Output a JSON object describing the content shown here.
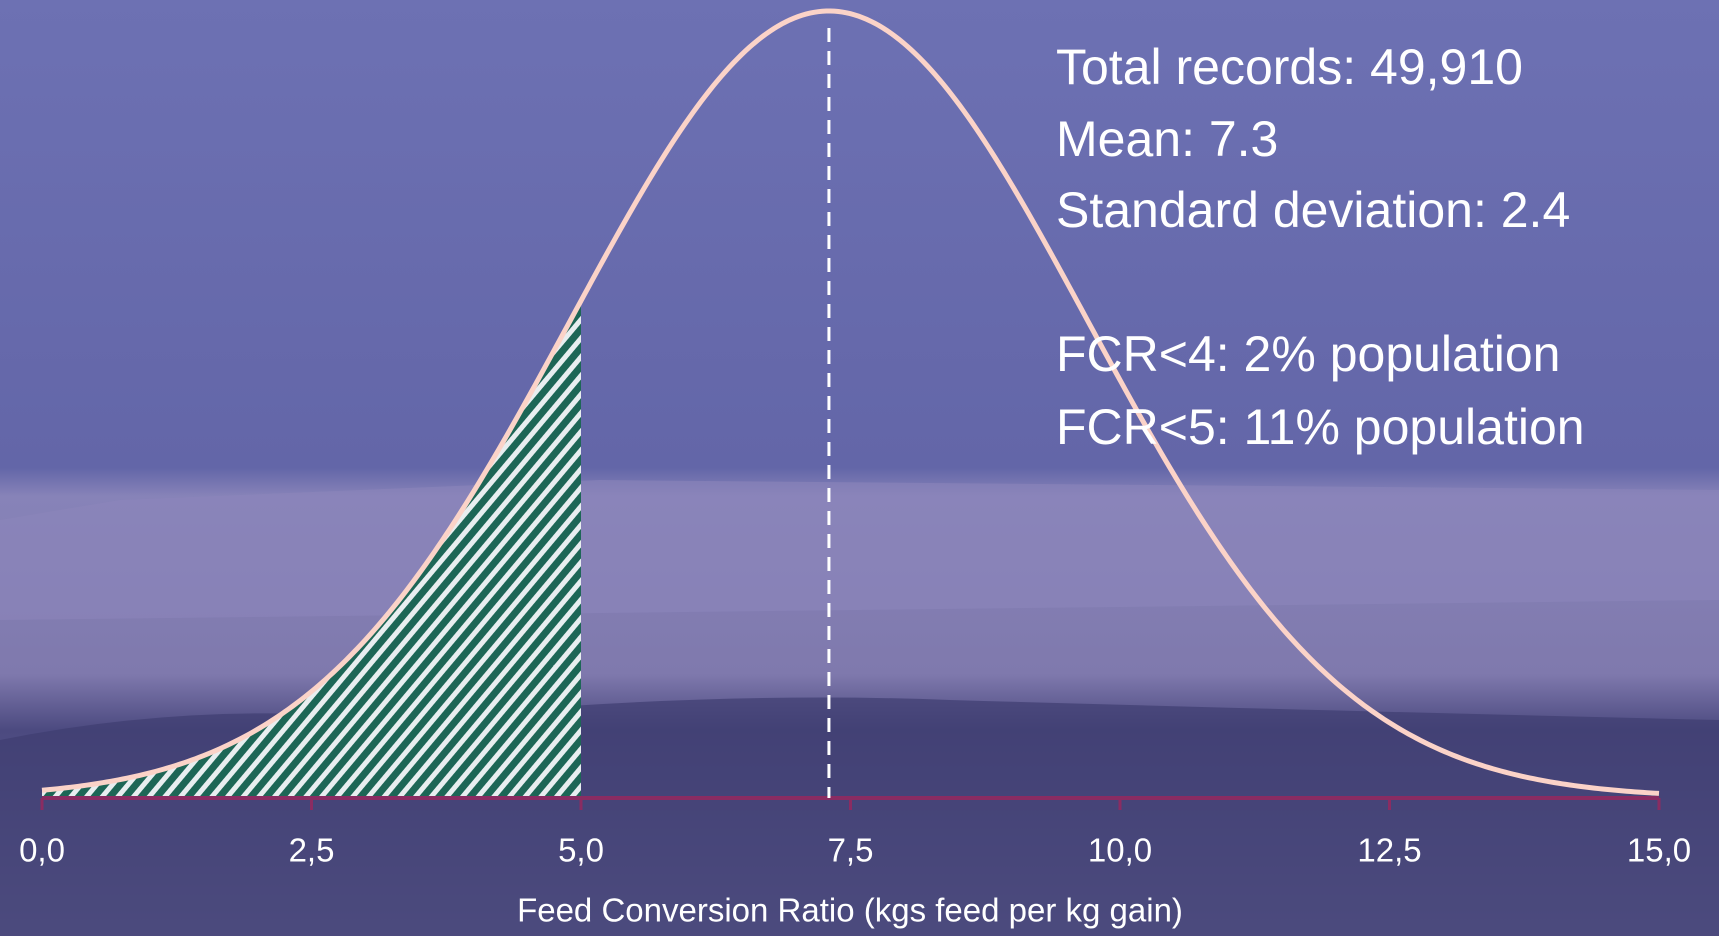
{
  "chart_data": {
    "type": "normal-curve",
    "annotations": [
      "Total records: 49,910",
      "Mean: 7.3",
      "Standard deviation: 2.4",
      "FCR<4: 2% population",
      "FCR<5: 11% population"
    ],
    "distribution": {
      "mean": 7.3,
      "sd": 2.4
    },
    "shade_below": 5,
    "xlabel": "Feed Conversion Ratio (kgs feed per kg gain)",
    "xlim": [
      0,
      15
    ],
    "xticks": [
      {
        "value": 0,
        "label": "0,0"
      },
      {
        "value": 2.5,
        "label": "2,5"
      },
      {
        "value": 5,
        "label": "5,0"
      },
      {
        "value": 7.5,
        "label": "7,5"
      },
      {
        "value": 10,
        "label": "10,0"
      },
      {
        "value": 12.5,
        "label": "12,5"
      },
      {
        "value": 15,
        "label": "15,0"
      }
    ],
    "curve_color": "#fbd3c8",
    "shade_color": "#1d6656",
    "axis_color": "#8a2c62",
    "mean_line": true
  }
}
